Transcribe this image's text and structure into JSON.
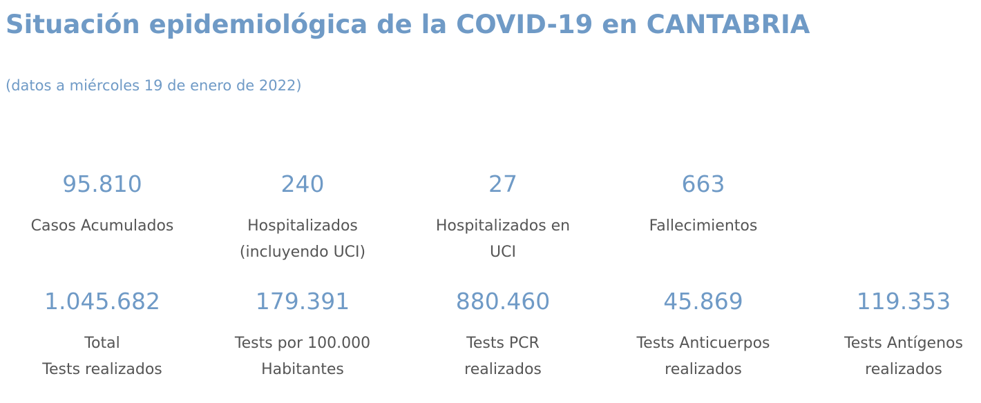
{
  "header": {
    "title": "Situación epidemiológica de la COVID-19 en CANTABRIA",
    "subtitle": "(datos a miércoles 19 de enero de 2022)"
  },
  "stats": {
    "row1": [
      {
        "value": "95.810",
        "label_lines": [
          "Casos Acumulados"
        ]
      },
      {
        "value": "240",
        "label_lines": [
          "Hospitalizados",
          "(incluyendo UCI)"
        ]
      },
      {
        "value": "27",
        "label_lines": [
          "Hospitalizados en",
          "UCI"
        ]
      },
      {
        "value": "663",
        "label_lines": [
          "Fallecimientos"
        ]
      }
    ],
    "row2": [
      {
        "value": "1.045.682",
        "label_lines": [
          "Total",
          "Tests realizados"
        ]
      },
      {
        "value": "179.391",
        "label_lines": [
          "Tests por 100.000",
          "Habitantes"
        ]
      },
      {
        "value": "880.460",
        "label_lines": [
          "Tests PCR",
          "realizados"
        ]
      },
      {
        "value": "45.869",
        "label_lines": [
          "Tests Anticuerpos",
          "realizados"
        ]
      },
      {
        "value": "119.353",
        "label_lines": [
          "Tests Antígenos",
          "realizados"
        ]
      }
    ]
  },
  "colors": {
    "accent": "#6f9ac6",
    "label_text": "#555555",
    "background": "#ffffff"
  }
}
